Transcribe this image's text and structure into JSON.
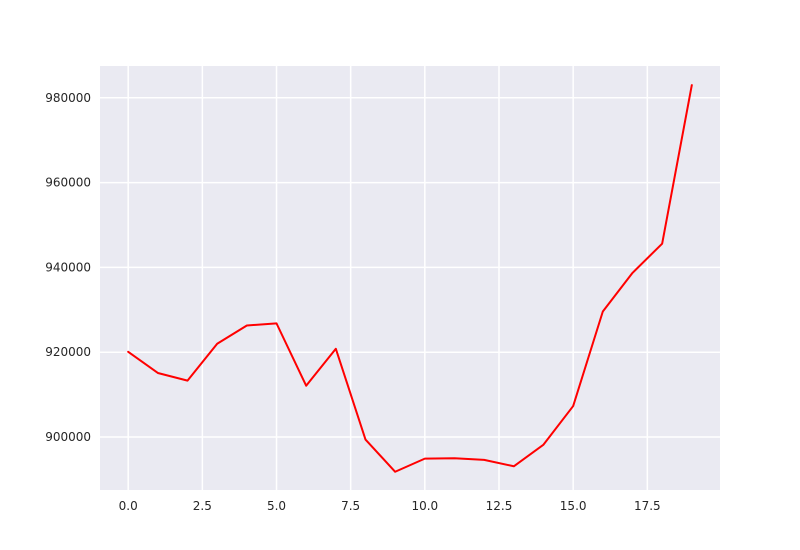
{
  "chart_data": {
    "type": "line",
    "title": "",
    "xlabel": "",
    "ylabel": "",
    "grid": true,
    "xlim": [
      -0.95,
      19.95
    ],
    "ylim": [
      887500,
      987500
    ],
    "x_ticks": [
      0.0,
      2.5,
      5.0,
      7.5,
      10.0,
      12.5,
      15.0,
      17.5
    ],
    "x_tick_labels": [
      "0.0",
      "2.5",
      "5.0",
      "7.5",
      "10.0",
      "12.5",
      "15.0",
      "17.5"
    ],
    "y_ticks": [
      900000,
      920000,
      940000,
      960000,
      980000
    ],
    "y_tick_labels": [
      "900000",
      "920000",
      "940000",
      "960000",
      "980000"
    ],
    "series": [
      {
        "color": "#ff0000",
        "x": [
          0,
          1,
          2,
          3,
          4,
          5,
          6,
          7,
          8,
          9,
          10,
          11,
          12,
          13,
          14,
          15,
          16,
          17,
          18,
          19
        ],
        "values": [
          920100,
          915100,
          913300,
          922000,
          926300,
          926800,
          912100,
          920800,
          899400,
          891800,
          894900,
          895000,
          894600,
          893100,
          898200,
          907300,
          929600,
          938700,
          945600,
          983000
        ]
      }
    ]
  },
  "style": {
    "plot_background": "#eaeaf2",
    "grid_color": "#ffffff",
    "text_color": "#262626"
  }
}
